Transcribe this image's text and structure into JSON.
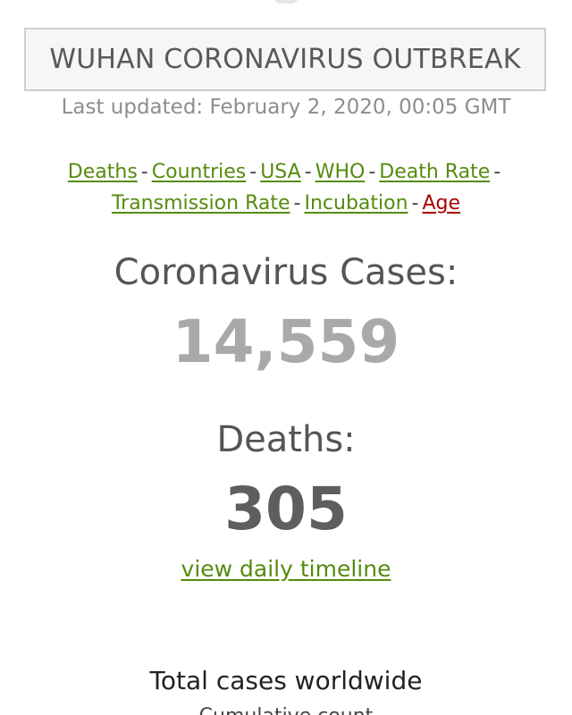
{
  "header": {
    "title": "WUHAN CORONAVIRUS OUTBREAK",
    "last_updated": "Last updated: February 2, 2020, 00:05 GMT"
  },
  "nav": {
    "line1": [
      {
        "label": "Deaths"
      },
      {
        "label": "Countries"
      },
      {
        "label": "USA"
      },
      {
        "label": "WHO"
      },
      {
        "label": "Death Rate"
      }
    ],
    "line2": [
      {
        "label": "Transmission Rate"
      },
      {
        "label": "Incubation"
      },
      {
        "label": "Age"
      }
    ],
    "separator": "-"
  },
  "stats": {
    "cases_label": "Coronavirus Cases:",
    "cases_value": "14,559",
    "deaths_label": "Deaths:",
    "deaths_value": "305"
  },
  "timeline_link": "view daily timeline",
  "total_section": {
    "heading": "Total cases worldwide",
    "subtext": "Cumulative count"
  },
  "colors": {
    "link_green": "#558b0e",
    "link_red": "#a80000",
    "cases_gray": "#a9a9a9",
    "deaths_gray": "#5e5e5e"
  }
}
